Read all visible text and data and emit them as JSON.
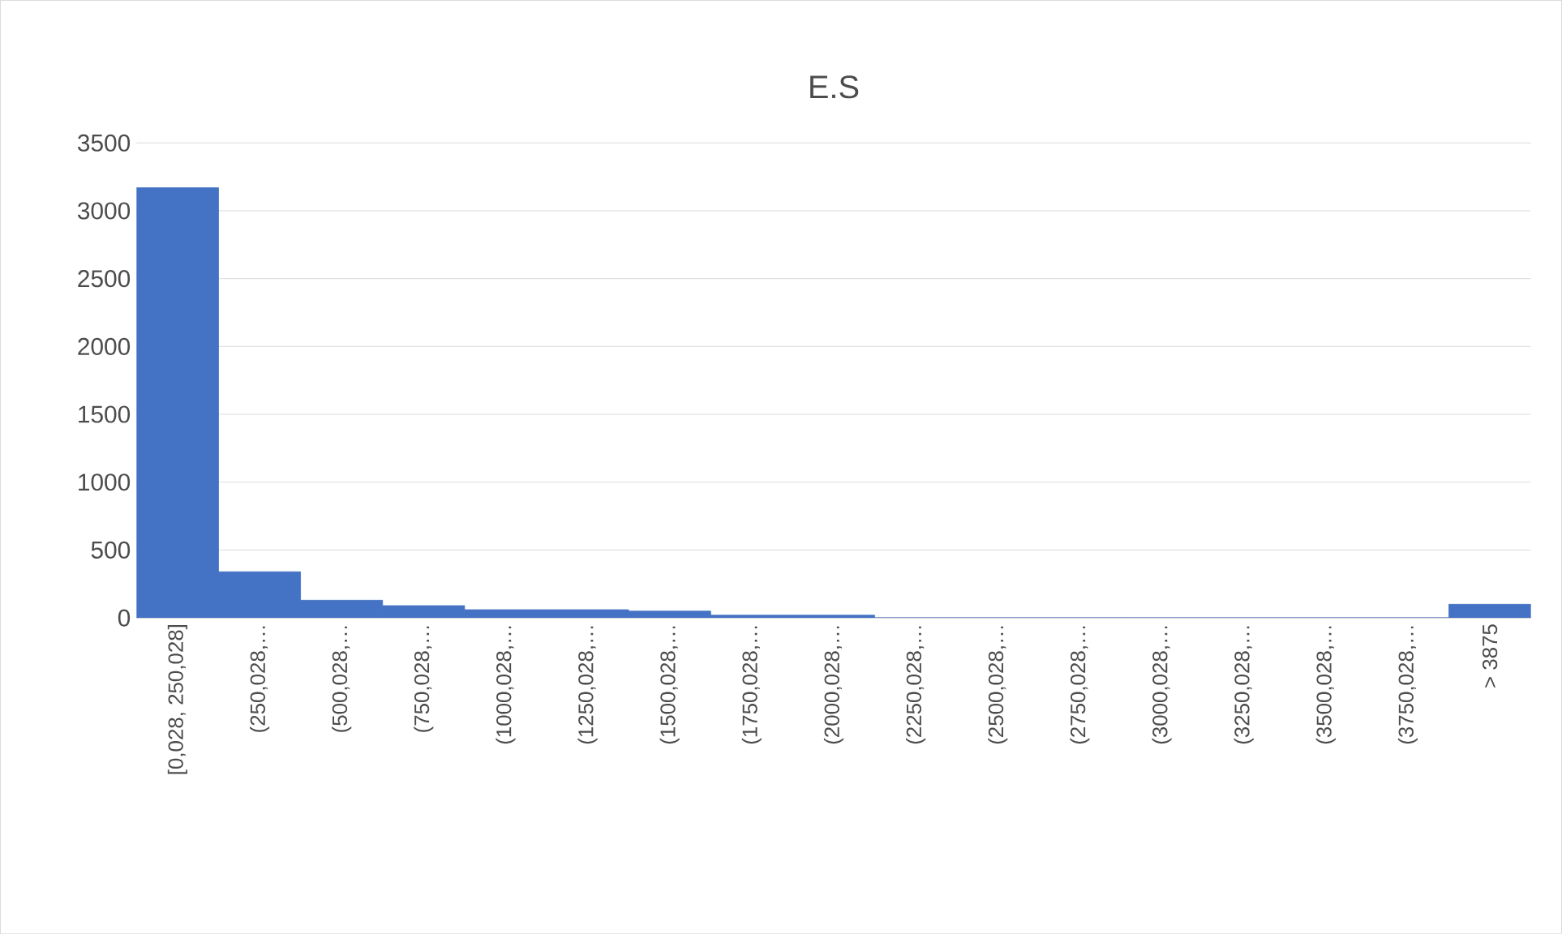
{
  "chart_data": {
    "type": "bar",
    "title": "E.S",
    "categories": [
      "[0,028, 250,028]",
      "(250,028,…",
      "(500,028,…",
      "(750,028,…",
      "(1000,028,…",
      "(1250,028,…",
      "(1500,028,…",
      "(1750,028,…",
      "(2000,028,…",
      "(2250,028,…",
      "(2500,028,…",
      "(2750,028,…",
      "(3000,028,…",
      "(3250,028,…",
      "(3500,028,…",
      "(3750,028,…",
      "> 3875"
    ],
    "values": [
      3170,
      340,
      130,
      90,
      60,
      60,
      50,
      20,
      20,
      0,
      0,
      0,
      0,
      0,
      0,
      0,
      100
    ],
    "color": "#4472c4",
    "ylim": [
      0,
      3500
    ],
    "yticks": [
      0,
      500,
      1000,
      1500,
      2000,
      2500,
      3000,
      3500
    ],
    "grid": "y"
  }
}
